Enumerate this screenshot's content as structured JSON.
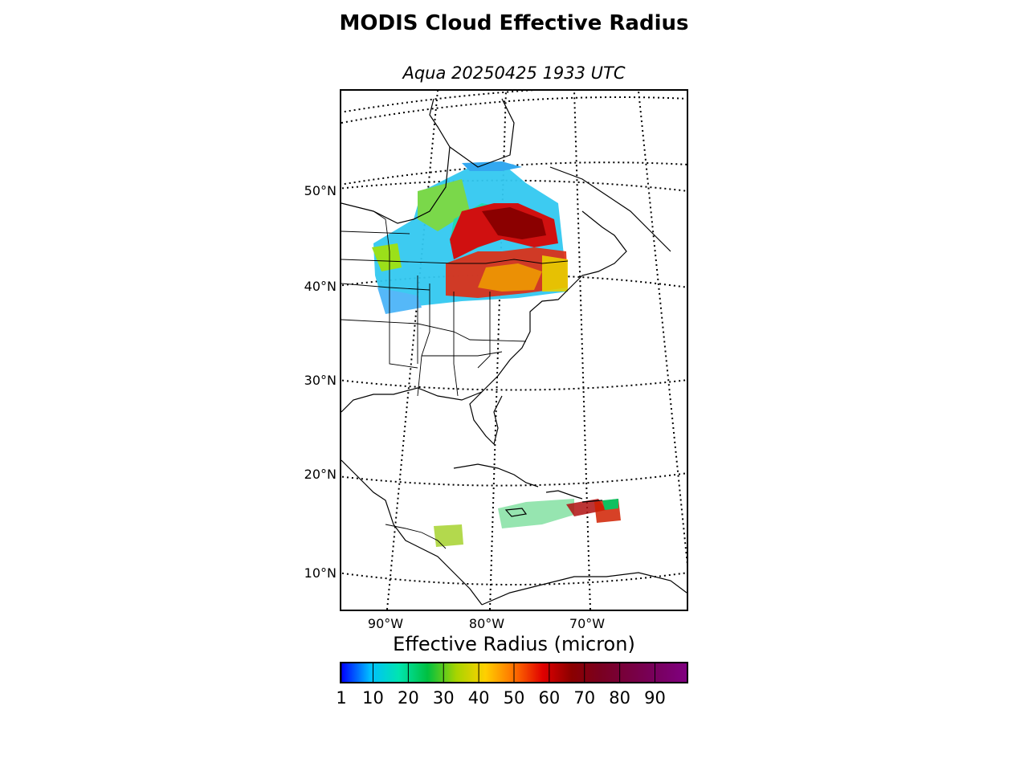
{
  "title": "MODIS Cloud Effective Radius",
  "subtitle": "Aqua 20250425 1933 UTC",
  "map": {
    "lat_labels": [
      "50°N",
      "40°N",
      "30°N",
      "20°N",
      "10°N"
    ],
    "lon_labels": [
      "90°W",
      "80°W",
      "70°W"
    ],
    "land_color": "#ffffff",
    "line_color": "#000000"
  },
  "colorbar": {
    "title": "Effective Radius (micron)",
    "ticks": [
      "1",
      "10",
      "20",
      "30",
      "40",
      "50",
      "60",
      "70",
      "80",
      "90"
    ],
    "range": [
      1,
      99
    ],
    "colors": [
      "#0000ff",
      "#00bfff",
      "#00e5b0",
      "#00c040",
      "#a8d400",
      "#ffd000",
      "#ff7000",
      "#e00000",
      "#8b0000",
      "#7a0020",
      "#780040",
      "#780060",
      "#800080"
    ]
  }
}
